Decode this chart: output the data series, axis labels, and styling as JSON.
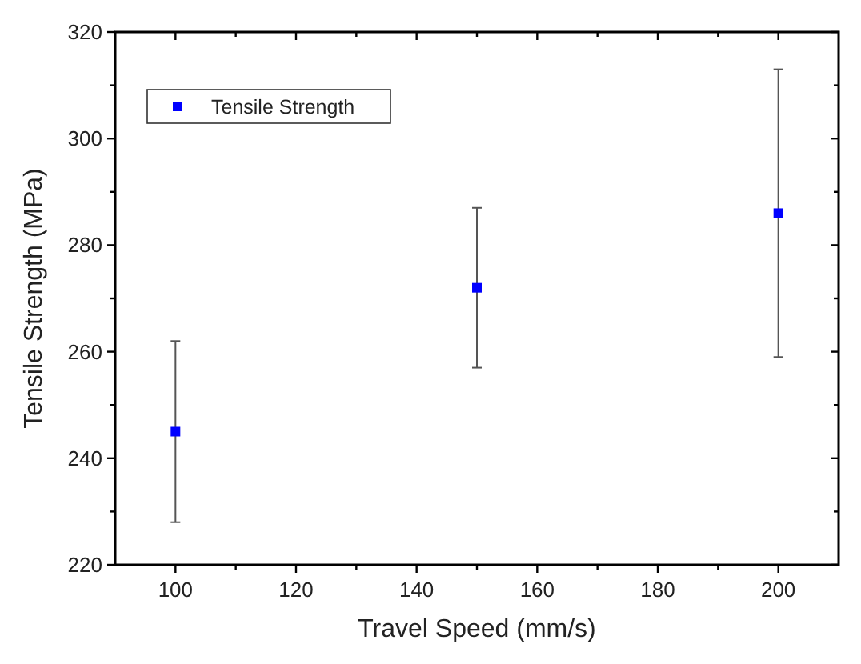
{
  "chart_data": {
    "type": "scatter",
    "xlabel": "Travel Speed (mm/s)",
    "ylabel": "Tensile Strength (MPa)",
    "x": [
      100,
      150,
      200
    ],
    "series": [
      {
        "name": "Tensile Strength",
        "color": "#0000ff",
        "values": [
          245,
          272,
          286
        ],
        "errors": [
          [
            228,
            262
          ],
          [
            257,
            287
          ],
          [
            259,
            313
          ]
        ]
      }
    ],
    "xlim": [
      90,
      210
    ],
    "xticks": [
      100,
      120,
      140,
      160,
      180,
      200
    ],
    "ylim": [
      220,
      320
    ],
    "yticks": [
      220,
      240,
      260,
      280,
      300,
      320
    ],
    "marker": "square",
    "legend": "top left",
    "grid": false
  }
}
